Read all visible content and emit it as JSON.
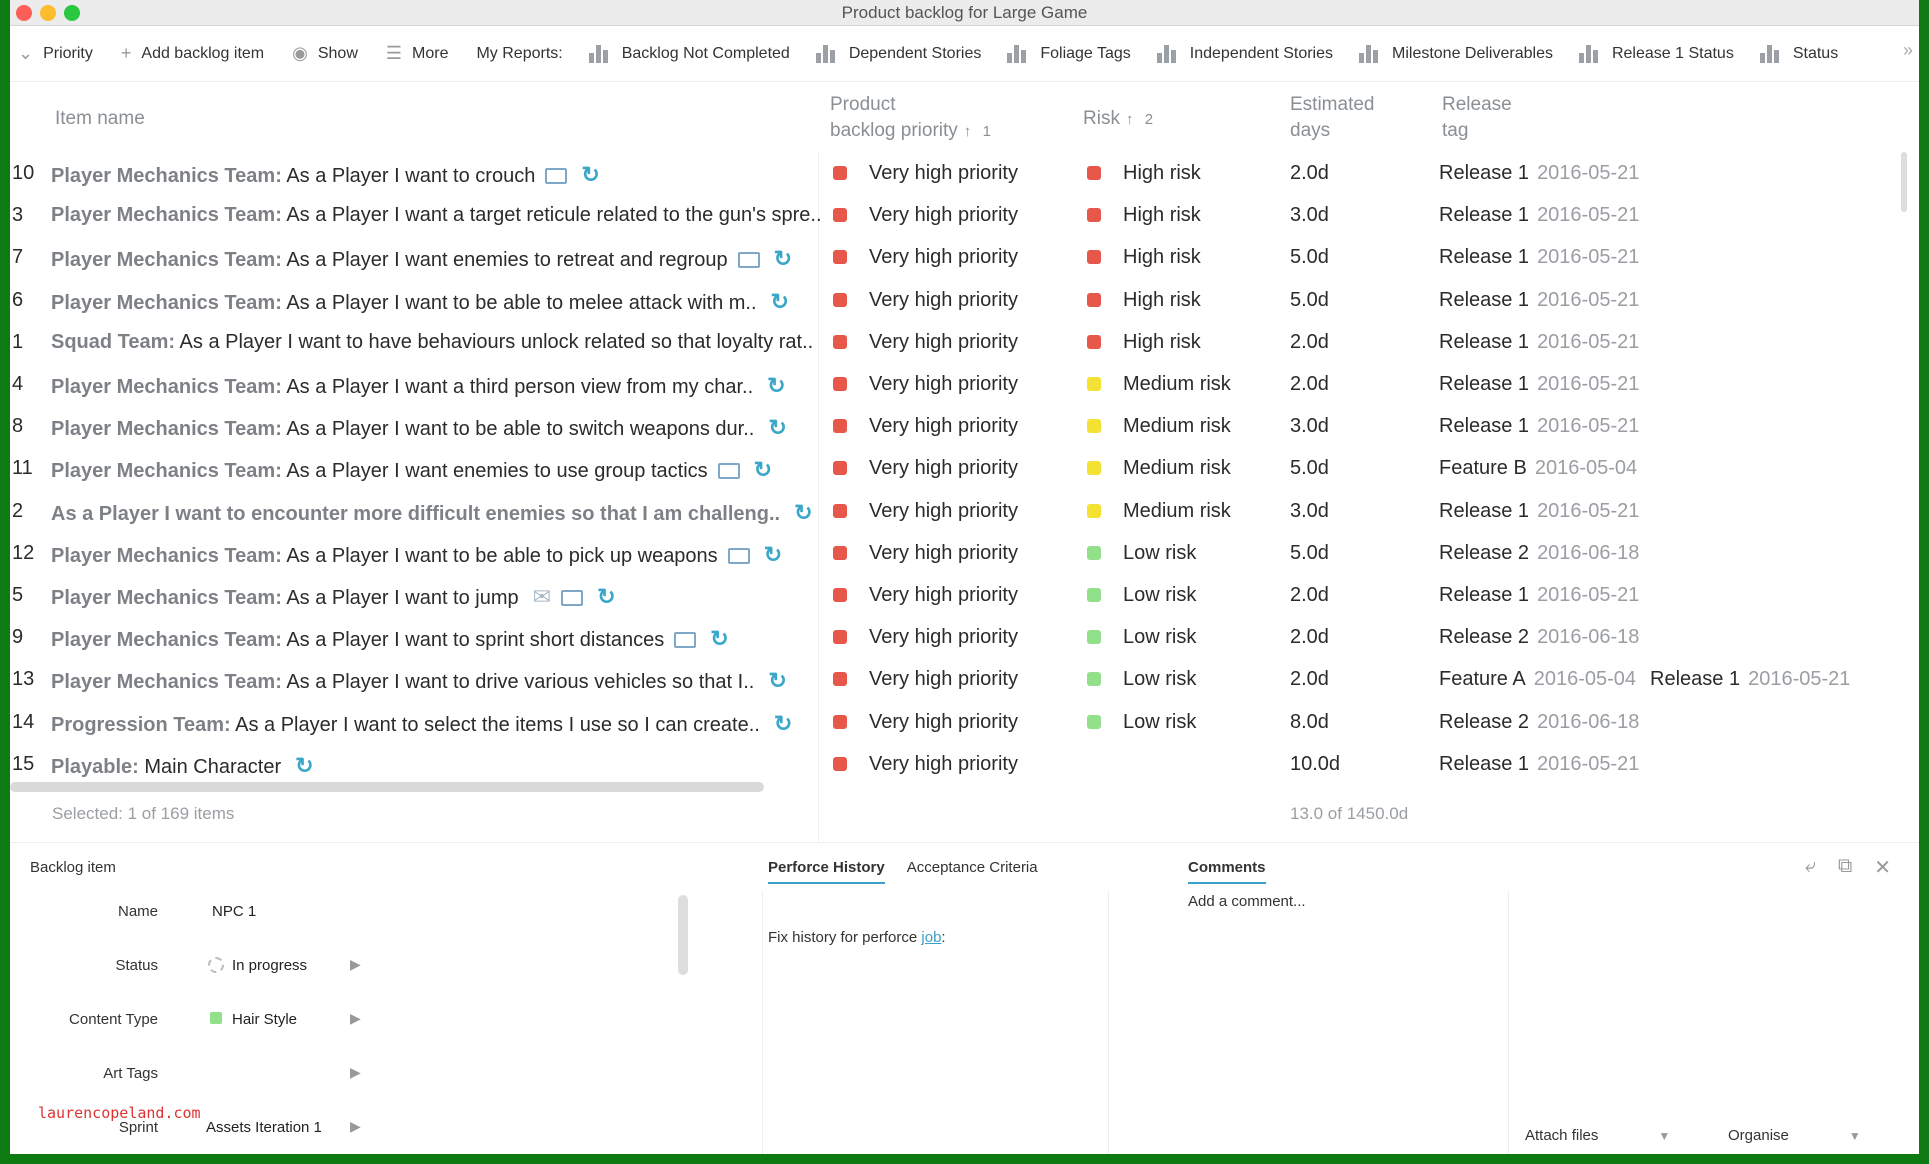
{
  "window": {
    "title": "Product backlog for Large Game"
  },
  "toolbar": {
    "priority_label": "Priority",
    "add_label": "Add backlog item",
    "show_label": "Show",
    "more_label": "More",
    "reports_label": "My Reports:",
    "reports": [
      "Backlog Not Completed",
      "Dependent Stories",
      "Foliage Tags",
      "Independent Stories",
      "Milestone Deliverables",
      "Release 1 Status",
      "Status"
    ]
  },
  "columns": {
    "item_name": "Item name",
    "priority_line1": "Product",
    "priority_line2": "backlog priority",
    "priority_sort": "1",
    "risk": "Risk",
    "risk_sort": "2",
    "est_line1": "Estimated",
    "est_line2": "days",
    "rel_line1": "Release",
    "rel_line2": "tag"
  },
  "colors": {
    "very_high": "#e8584a",
    "high_risk": "#e8584a",
    "medium_risk": "#f3e232",
    "low_risk": "#92e08a"
  },
  "rows": [
    {
      "num": "10",
      "team": "Player Mechanics Team:",
      "text": " As a Player I want to crouch",
      "icons": [
        "chat",
        "cycle"
      ],
      "priority": "Very high priority",
      "risk": "High risk",
      "risk_color": "#e8584a",
      "est": "2.0d",
      "rel": "Release 1",
      "rel_date": "2016-05-21"
    },
    {
      "num": "3",
      "team": "Player Mechanics Team:",
      "text": " As a Player I want a target reticule related to the gun's spre..",
      "icons": [],
      "priority": "Very high priority",
      "risk": "High risk",
      "risk_color": "#e8584a",
      "est": "3.0d",
      "rel": "Release 1",
      "rel_date": "2016-05-21"
    },
    {
      "num": "7",
      "team": "Player Mechanics Team:",
      "text": " As a Player I want enemies to retreat and regroup",
      "icons": [
        "chat",
        "cycle"
      ],
      "priority": "Very high priority",
      "risk": "High risk",
      "risk_color": "#e8584a",
      "est": "5.0d",
      "rel": "Release 1",
      "rel_date": "2016-05-21"
    },
    {
      "num": "6",
      "team": "Player Mechanics Team:",
      "text": " As a Player I want to be able to melee attack with m..",
      "icons": [
        "cycle"
      ],
      "priority": "Very high priority",
      "risk": "High risk",
      "risk_color": "#e8584a",
      "est": "5.0d",
      "rel": "Release 1",
      "rel_date": "2016-05-21"
    },
    {
      "num": "1",
      "team": "Squad Team:",
      "text": " As a Player I want to have behaviours unlock related so that loyalty rat..",
      "icons": [],
      "priority": "Very high priority",
      "risk": "High risk",
      "risk_color": "#e8584a",
      "est": "2.0d",
      "rel": "Release 1",
      "rel_date": "2016-05-21"
    },
    {
      "num": "4",
      "team": "Player Mechanics Team:",
      "text": " As a Player I want a third person view from my char..",
      "icons": [
        "cycle"
      ],
      "priority": "Very high priority",
      "risk": "Medium risk",
      "risk_color": "#f3e232",
      "est": "2.0d",
      "rel": "Release 1",
      "rel_date": "2016-05-21"
    },
    {
      "num": "8",
      "team": "Player Mechanics Team:",
      "text": " As a Player I want to be able to switch weapons dur..",
      "icons": [
        "cycle"
      ],
      "priority": "Very high priority",
      "risk": "Medium risk",
      "risk_color": "#f3e232",
      "est": "3.0d",
      "rel": "Release 1",
      "rel_date": "2016-05-21"
    },
    {
      "num": "11",
      "team": "Player Mechanics Team:",
      "text": " As a Player I want enemies to use group tactics",
      "icons": [
        "chat",
        "cycle"
      ],
      "priority": "Very high priority",
      "risk": "Medium risk",
      "risk_color": "#f3e232",
      "est": "5.0d",
      "rel": "Feature B",
      "rel_date": "2016-05-04"
    },
    {
      "num": "2",
      "team": "As a Player I want to encounter more difficult enemies so that I am challeng..",
      "text": "",
      "icons": [
        "cycle"
      ],
      "priority": "Very high priority",
      "risk": "Medium risk",
      "risk_color": "#f3e232",
      "est": "3.0d",
      "rel": "Release 1",
      "rel_date": "2016-05-21"
    },
    {
      "num": "12",
      "team": "Player Mechanics Team:",
      "text": " As a Player I want to be able to pick up weapons",
      "icons": [
        "chat",
        "cycle"
      ],
      "priority": "Very high priority",
      "risk": "Low risk",
      "risk_color": "#92e08a",
      "est": "5.0d",
      "rel": "Release 2",
      "rel_date": "2016-06-18"
    },
    {
      "num": "5",
      "team": "Player Mechanics Team:",
      "text": " As a Player I want to jump",
      "icons": [
        "mail",
        "chat",
        "cycle"
      ],
      "priority": "Very high priority",
      "risk": "Low risk",
      "risk_color": "#92e08a",
      "est": "2.0d",
      "rel": "Release 1",
      "rel_date": "2016-05-21"
    },
    {
      "num": "9",
      "team": "Player Mechanics Team:",
      "text": " As a Player I want to sprint short distances",
      "icons": [
        "chat",
        "cycle"
      ],
      "priority": "Very high priority",
      "risk": "Low risk",
      "risk_color": "#92e08a",
      "est": "2.0d",
      "rel": "Release 2",
      "rel_date": "2016-06-18"
    },
    {
      "num": "13",
      "team": "Player Mechanics Team:",
      "text": " As a Player I want to drive various vehicles so that I..",
      "icons": [
        "cycle"
      ],
      "priority": "Very high priority",
      "risk": "Low risk",
      "risk_color": "#92e08a",
      "est": "2.0d",
      "rel": "Feature A",
      "rel_date": "2016-05-04",
      "rel2": "Release 1",
      "rel2_date": "2016-05-21"
    },
    {
      "num": "14",
      "team": "Progression Team:",
      "text": " As a Player I want to select the items I use so I can create..",
      "icons": [
        "cycle"
      ],
      "priority": "Very high priority",
      "risk": "Low risk",
      "risk_color": "#92e08a",
      "est": "8.0d",
      "rel": "Release 2",
      "rel_date": "2016-06-18"
    },
    {
      "num": "15",
      "team": "Playable:",
      "text": " Main Character",
      "icons": [
        "cycle"
      ],
      "priority": "Very high priority",
      "risk": "",
      "risk_color": "",
      "est": "10.0d",
      "rel": "Release 1",
      "rel_date": "2016-05-21"
    }
  ],
  "footer": {
    "selected": "Selected: 1 of 169 items",
    "estimate_total": "13.0 of 1450.0d"
  },
  "detail": {
    "title": "Backlog item",
    "fields": [
      {
        "label": "Name",
        "value": "NPC 1"
      },
      {
        "label": "Status",
        "value": "In progress"
      },
      {
        "label": "Content Type",
        "value": "Hair Style"
      },
      {
        "label": "Art Tags",
        "value": ""
      },
      {
        "label": "Sprint",
        "value": "Assets Iteration 1"
      }
    ],
    "tabs": [
      "Perforce History",
      "Acceptance Criteria"
    ],
    "history_text": "Fix history for perforce ",
    "history_link": "job",
    "history_suffix": ":",
    "comments_tab": "Comments",
    "comment_placeholder": "Add a comment...",
    "attach_label": "Attach files",
    "organise_label": "Organise"
  },
  "watermark": "laurencopeland.com"
}
